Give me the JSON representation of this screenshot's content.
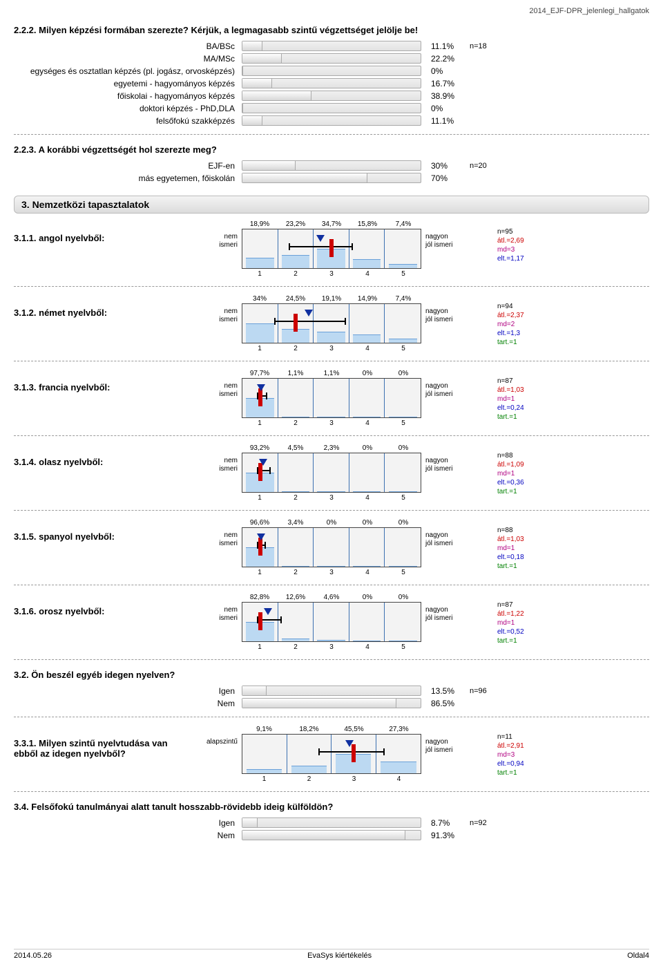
{
  "header": {
    "doc_title": "2014_EJF-DPR_jelenlegi_hallgatok"
  },
  "q222": {
    "title": "2.2.2. Milyen képzési formában szerezte? Kérjük, a legmagasabb szintű végzettséget jelölje be!",
    "n": "n=18",
    "items": [
      {
        "label": "BA/BSc",
        "pct": 11.1,
        "pct_text": "11.1%"
      },
      {
        "label": "MA/MSc",
        "pct": 22.2,
        "pct_text": "22.2%"
      },
      {
        "label": "egységes és osztatlan képzés (pl. jogász, orvosképzés)",
        "pct": 0,
        "pct_text": "0%"
      },
      {
        "label": "egyetemi - hagyományos képzés",
        "pct": 16.7,
        "pct_text": "16.7%"
      },
      {
        "label": "főiskolai - hagyományos képzés",
        "pct": 38.9,
        "pct_text": "38.9%"
      },
      {
        "label": "doktori képzés - PhD,DLA",
        "pct": 0,
        "pct_text": "0%"
      },
      {
        "label": "felsőfokú szakképzés",
        "pct": 11.1,
        "pct_text": "11.1%"
      }
    ]
  },
  "q223": {
    "title": "2.2.3. A korábbi végzettségét hol szerezte meg?",
    "n": "n=20",
    "items": [
      {
        "label": "EJF-en",
        "pct": 30,
        "pct_text": "30%"
      },
      {
        "label": "más egyetemen, főiskolán",
        "pct": 70,
        "pct_text": "70%"
      }
    ]
  },
  "section3": {
    "title": "3. Nemzetközi tapasztalatok"
  },
  "likerts": [
    {
      "id": "311",
      "title": "3.1.1. angol nyelvből:",
      "left": "nem ismeri",
      "right": "nagyon jól ismeri",
      "bins": 5,
      "pcts": [
        "18,9%",
        "23,2%",
        "34,7%",
        "15,8%",
        "7,4%"
      ],
      "heights": [
        18.9,
        23.2,
        34.7,
        15.8,
        7.4
      ],
      "mean": 2.69,
      "median": 3,
      "ci_lo": 1.8,
      "ci_hi": 3.6,
      "stats": {
        "n": "n=95",
        "atl": "átl.=2,69",
        "md": "md=3",
        "elt": "elt.=1,17",
        "tart": ""
      }
    },
    {
      "id": "312",
      "title": "3.1.2. német nyelvből:",
      "left": "nem ismeri",
      "right": "nagyon jól ismeri",
      "bins": 5,
      "pcts": [
        "34%",
        "24,5%",
        "19,1%",
        "14,9%",
        "7,4%"
      ],
      "heights": [
        34,
        24.5,
        19.1,
        14.9,
        7.4
      ],
      "mean": 2.37,
      "median": 2,
      "ci_lo": 1.4,
      "ci_hi": 3.4,
      "stats": {
        "n": "n=94",
        "atl": "átl.=2,37",
        "md": "md=2",
        "elt": "elt.=1,3",
        "tart": "tart.=1"
      }
    },
    {
      "id": "313",
      "title": "3.1.3. francia nyelvből:",
      "left": "nem ismeri",
      "right": "nagyon jól ismeri",
      "bins": 5,
      "pcts": [
        "97,7%",
        "1,1%",
        "1,1%",
        "0%",
        "0%"
      ],
      "heights": [
        97.7,
        1.1,
        1.1,
        0,
        0
      ],
      "mean": 1.03,
      "median": 1,
      "ci_lo": 0.9,
      "ci_hi": 1.2,
      "stats": {
        "n": "n=87",
        "atl": "átl.=1,03",
        "md": "md=1",
        "elt": "elt.=0,24",
        "tart": "tart.=1"
      }
    },
    {
      "id": "314",
      "title": "3.1.4. olasz nyelvből:",
      "left": "nem ismeri",
      "right": "nagyon jól ismeri",
      "bins": 5,
      "pcts": [
        "93,2%",
        "4,5%",
        "2,3%",
        "0%",
        "0%"
      ],
      "heights": [
        93.2,
        4.5,
        2.3,
        0,
        0
      ],
      "mean": 1.09,
      "median": 1,
      "ci_lo": 0.9,
      "ci_hi": 1.3,
      "stats": {
        "n": "n=88",
        "atl": "átl.=1,09",
        "md": "md=1",
        "elt": "elt.=0,36",
        "tart": "tart.=1"
      }
    },
    {
      "id": "315",
      "title": "3.1.5. spanyol nyelvből:",
      "left": "nem ismeri",
      "right": "nagyon jól ismeri",
      "bins": 5,
      "pcts": [
        "96,6%",
        "3,4%",
        "0%",
        "0%",
        "0%"
      ],
      "heights": [
        96.6,
        3.4,
        0,
        0,
        0
      ],
      "mean": 1.03,
      "median": 1,
      "ci_lo": 0.9,
      "ci_hi": 1.15,
      "stats": {
        "n": "n=88",
        "atl": "átl.=1,03",
        "md": "md=1",
        "elt": "elt.=0,18",
        "tart": "tart.=1"
      }
    },
    {
      "id": "316",
      "title": "3.1.6. orosz nyelvből:",
      "left": "nem ismeri",
      "right": "nagyon jól ismeri",
      "bins": 5,
      "pcts": [
        "82,8%",
        "12,6%",
        "4,6%",
        "0%",
        "0%"
      ],
      "heights": [
        82.8,
        12.6,
        4.6,
        0,
        0
      ],
      "mean": 1.22,
      "median": 1,
      "ci_lo": 0.9,
      "ci_hi": 1.6,
      "stats": {
        "n": "n=87",
        "atl": "átl.=1,22",
        "md": "md=1",
        "elt": "elt.=0,52",
        "tart": "tart.=1"
      }
    }
  ],
  "q32": {
    "title": "3.2. Ön beszél egyéb idegen nyelven?",
    "n": "n=96",
    "items": [
      {
        "label": "Igen",
        "pct": 13.5,
        "pct_text": "13.5%"
      },
      {
        "label": "Nem",
        "pct": 86.5,
        "pct_text": "86.5%"
      }
    ]
  },
  "likert331": {
    "id": "331",
    "title": "3.3.1. Milyen szintű nyelvtudása van ebből az idegen nyelvből?",
    "left": "alapszintű",
    "right": "nagyon jól ismeri",
    "bins": 4,
    "pcts": [
      "9,1%",
      "18,2%",
      "45,5%",
      "27,3%"
    ],
    "heights": [
      9.1,
      18.2,
      45.5,
      27.3
    ],
    "mean": 2.91,
    "median": 3,
    "ci_lo": 2.2,
    "ci_hi": 3.7,
    "stats": {
      "n": "n=11",
      "atl": "átl.=2,91",
      "md": "md=3",
      "elt": "elt.=0,94",
      "tart": "tart.=1"
    }
  },
  "q34": {
    "title": "3.4. Felsőfokú tanulmányai alatt tanult hosszabb-rövidebb ideig külföldön?",
    "n": "n=92",
    "items": [
      {
        "label": "Igen",
        "pct": 8.7,
        "pct_text": "8.7%"
      },
      {
        "label": "Nem",
        "pct": 91.3,
        "pct_text": "91.3%"
      }
    ]
  },
  "footer": {
    "left": "2014.05.26",
    "center": "EvaSys kiértékelés",
    "right": "Oldal4"
  }
}
